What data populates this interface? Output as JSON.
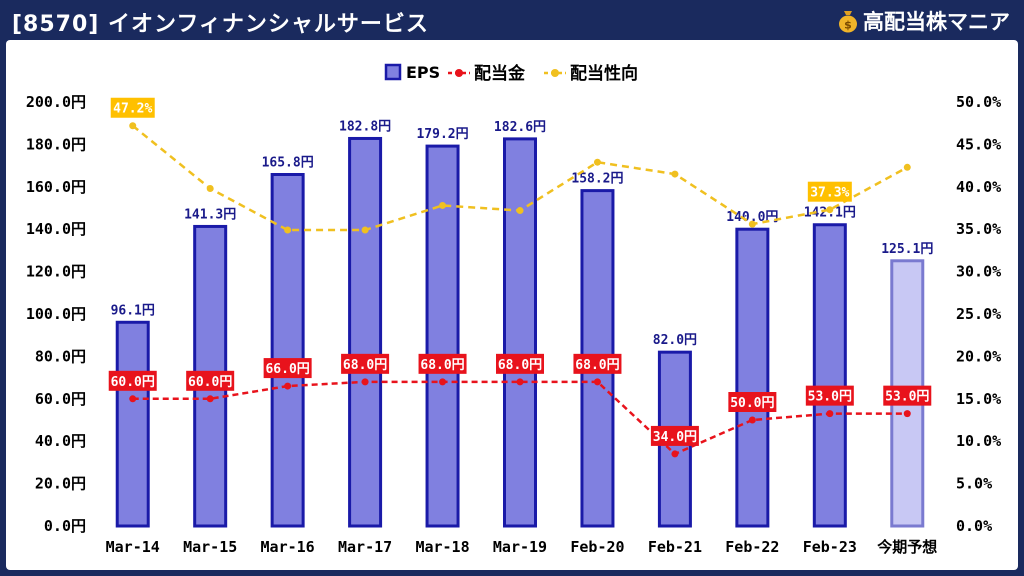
{
  "header": {
    "title": "[8570] イオンフィナンシャルサービス",
    "brand": "高配当株マニア"
  },
  "chart_data": {
    "type": "bar",
    "categories": [
      "Mar-14",
      "Mar-15",
      "Mar-16",
      "Mar-17",
      "Mar-18",
      "Mar-19",
      "Feb-20",
      "Feb-21",
      "Feb-22",
      "Feb-23",
      "今期予想"
    ],
    "legend_position": "top-center",
    "grid": false,
    "y_left": {
      "min": 0,
      "max": 200,
      "step": 20,
      "tick_labels": [
        "0.0円",
        "20.0円",
        "40.0円",
        "60.0円",
        "80.0円",
        "100.0円",
        "120.0円",
        "140.0円",
        "160.0円",
        "180.0円",
        "200.0円"
      ]
    },
    "y_right": {
      "min": 0,
      "max": 50,
      "step": 5,
      "tick_labels": [
        "0.0%",
        "5.0%",
        "10.0%",
        "15.0%",
        "20.0%",
        "25.0%",
        "30.0%",
        "35.0%",
        "40.0%",
        "45.0%",
        "50.0%"
      ]
    },
    "series": [
      {
        "name": "EPS",
        "kind": "bar",
        "axis": "left",
        "values": [
          96.1,
          141.3,
          165.8,
          182.8,
          179.2,
          182.6,
          158.2,
          82.0,
          140.0,
          142.1,
          125.1
        ],
        "labels": [
          "96.1円",
          "141.3円",
          "165.8円",
          "182.8円",
          "179.2円",
          "182.6円",
          "158.2円",
          "82.0円",
          "140.0円",
          "142.1円",
          "125.1円"
        ],
        "color": "#8080e0",
        "border": "#1a1aa8",
        "forecast_color": "#c8c8f4",
        "forecast_border": "#7a7ad0"
      },
      {
        "name": "配当金",
        "kind": "line",
        "axis": "left",
        "values": [
          60.0,
          60.0,
          66.0,
          68.0,
          68.0,
          68.0,
          68.0,
          34.0,
          50.0,
          53.0,
          53.0
        ],
        "labels": [
          "60.0円",
          "60.0円",
          "66.0円",
          "68.0円",
          "68.0円",
          "68.0円",
          "68.0円",
          "34.0円",
          "50.0円",
          "53.0円",
          "53.0円"
        ],
        "color": "#e8131c"
      },
      {
        "name": "配当性向",
        "kind": "line",
        "axis": "right",
        "values": [
          47.2,
          39.8,
          34.9,
          34.9,
          37.8,
          37.2,
          42.9,
          41.5,
          35.6,
          37.3,
          42.3
        ],
        "labels": [
          "47.2%",
          null,
          null,
          null,
          null,
          null,
          null,
          null,
          null,
          "37.3%",
          null
        ],
        "color": "#f0c020",
        "label_bg": "#ffc000"
      }
    ]
  }
}
